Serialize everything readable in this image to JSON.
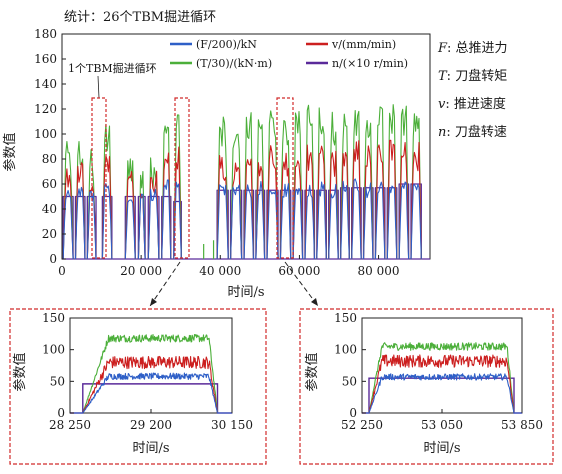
{
  "colors": {
    "F": "#2e5fc7",
    "v": "#cc1f1f",
    "T": "#4caf3a",
    "n": "#5a2a9a",
    "highlight": "#d12b2b",
    "axis": "#222222"
  },
  "chart_data": [
    {
      "type": "line",
      "title": "统计：26个TBM掘进循环",
      "annotation": "1个TBM掘进循环",
      "xlabel": "时间/s",
      "ylabel": "参数值",
      "xlim": [
        0,
        93000
      ],
      "ylim": [
        0,
        180
      ],
      "xticks": [
        "0",
        "20 000",
        "40 000",
        "60 000",
        "80 000"
      ],
      "yticks": [
        "0",
        "20",
        "40",
        "60",
        "80",
        "100",
        "120",
        "140",
        "160",
        "180"
      ],
      "legend_position": "top",
      "series": [
        {
          "key": "F",
          "name": "(F/200)/kN",
          "typical_value": 55
        },
        {
          "key": "v",
          "name": "v/(mm/min)",
          "typical_value": 78
        },
        {
          "key": "T",
          "name": "(T/30)/(kN·m)",
          "typical_value": 95
        },
        {
          "key": "n",
          "name": "n/(×10 r/min)",
          "typical_value": 55
        }
      ],
      "cycles": [
        {
          "start": 300,
          "end": 2800,
          "n": 50,
          "F": 52,
          "v": 65,
          "T": 80
        },
        {
          "start": 3400,
          "end": 5800,
          "n": 50,
          "F": 55,
          "v": 68,
          "T": 85
        },
        {
          "start": 6400,
          "end": 8600,
          "n": 50,
          "F": 52,
          "v": 60,
          "T": 75
        },
        {
          "start": 10200,
          "end": 12600,
          "n": 50,
          "F": 56,
          "v": 75,
          "T": 95
        },
        {
          "start": 16000,
          "end": 18500,
          "n": 50,
          "F": 45,
          "v": 58,
          "T": 70
        },
        {
          "start": 19300,
          "end": 21000,
          "n": 50,
          "F": 48,
          "v": 55,
          "T": 65
        },
        {
          "start": 21800,
          "end": 24500,
          "n": 50,
          "F": 50,
          "v": 60,
          "T": 70
        },
        {
          "start": 25200,
          "end": 27500,
          "n": 50,
          "F": 58,
          "v": 80,
          "T": 100
        },
        {
          "start": 28250,
          "end": 30150,
          "n": 46,
          "F": 58,
          "v": 80,
          "T": 118
        },
        {
          "start": 39200,
          "end": 42000,
          "n": 55,
          "F": 55,
          "v": 72,
          "T": 102
        },
        {
          "start": 42600,
          "end": 45400,
          "n": 55,
          "F": 56,
          "v": 70,
          "T": 100
        },
        {
          "start": 46000,
          "end": 48400,
          "n": 55,
          "F": 55,
          "v": 75,
          "T": 105
        },
        {
          "start": 49000,
          "end": 51200,
          "n": 55,
          "F": 56,
          "v": 70,
          "T": 98
        },
        {
          "start": 51800,
          "end": 54600,
          "n": 55,
          "F": 57,
          "v": 82,
          "T": 105
        },
        {
          "start": 55200,
          "end": 57800,
          "n": 55,
          "F": 55,
          "v": 78,
          "T": 105
        },
        {
          "start": 58400,
          "end": 60800,
          "n": 55,
          "F": 56,
          "v": 75,
          "T": 105
        },
        {
          "start": 61400,
          "end": 63800,
          "n": 55,
          "F": 55,
          "v": 80,
          "T": 110
        },
        {
          "start": 64400,
          "end": 66800,
          "n": 55,
          "F": 56,
          "v": 80,
          "T": 108
        },
        {
          "start": 67400,
          "end": 69800,
          "n": 55,
          "F": 54,
          "v": 78,
          "T": 105
        },
        {
          "start": 70400,
          "end": 72600,
          "n": 57,
          "F": 58,
          "v": 82,
          "T": 108
        },
        {
          "start": 73200,
          "end": 75600,
          "n": 57,
          "F": 58,
          "v": 85,
          "T": 110
        },
        {
          "start": 76200,
          "end": 78600,
          "n": 57,
          "F": 55,
          "v": 80,
          "T": 105
        },
        {
          "start": 79200,
          "end": 81600,
          "n": 57,
          "F": 56,
          "v": 82,
          "T": 108
        },
        {
          "start": 82200,
          "end": 84600,
          "n": 57,
          "F": 58,
          "v": 85,
          "T": 110
        },
        {
          "start": 85200,
          "end": 87600,
          "n": 60,
          "F": 56,
          "v": 85,
          "T": 110
        },
        {
          "start": 88200,
          "end": 90800,
          "n": 60,
          "F": 55,
          "v": 82,
          "T": 108
        }
      ]
    },
    {
      "type": "line",
      "xlabel": "时间/s",
      "ylabel": "参数值",
      "xlim": [
        28250,
        30150
      ],
      "ylim": [
        0,
        150
      ],
      "xticks": [
        "28 250",
        "29 200",
        "30 150"
      ],
      "yticks": [
        "0",
        "50",
        "100",
        "150"
      ],
      "levels": {
        "n": 46,
        "F": 58,
        "v": 80,
        "T": 118
      },
      "ramp": [
        28400,
        28700,
        29880,
        29980
      ]
    },
    {
      "type": "line",
      "xlabel": "时间/s",
      "ylabel": "参数值",
      "xlim": [
        52250,
        53850
      ],
      "ylim": [
        0,
        150
      ],
      "xticks": [
        "52 250",
        "53 050",
        "53 850"
      ],
      "yticks": [
        "0",
        "50",
        "100",
        "150"
      ],
      "levels": {
        "n": 55,
        "F": 57,
        "v": 82,
        "T": 105
      },
      "ramp": [
        52320,
        52450,
        53700,
        53770
      ]
    }
  ],
  "legend_side": [
    {
      "sym": "F",
      "label": "总推进力"
    },
    {
      "sym": "T",
      "label": "刀盘转矩"
    },
    {
      "sym": "v",
      "label": "推进速度"
    },
    {
      "sym": "n",
      "label": "刀盘转速"
    }
  ]
}
